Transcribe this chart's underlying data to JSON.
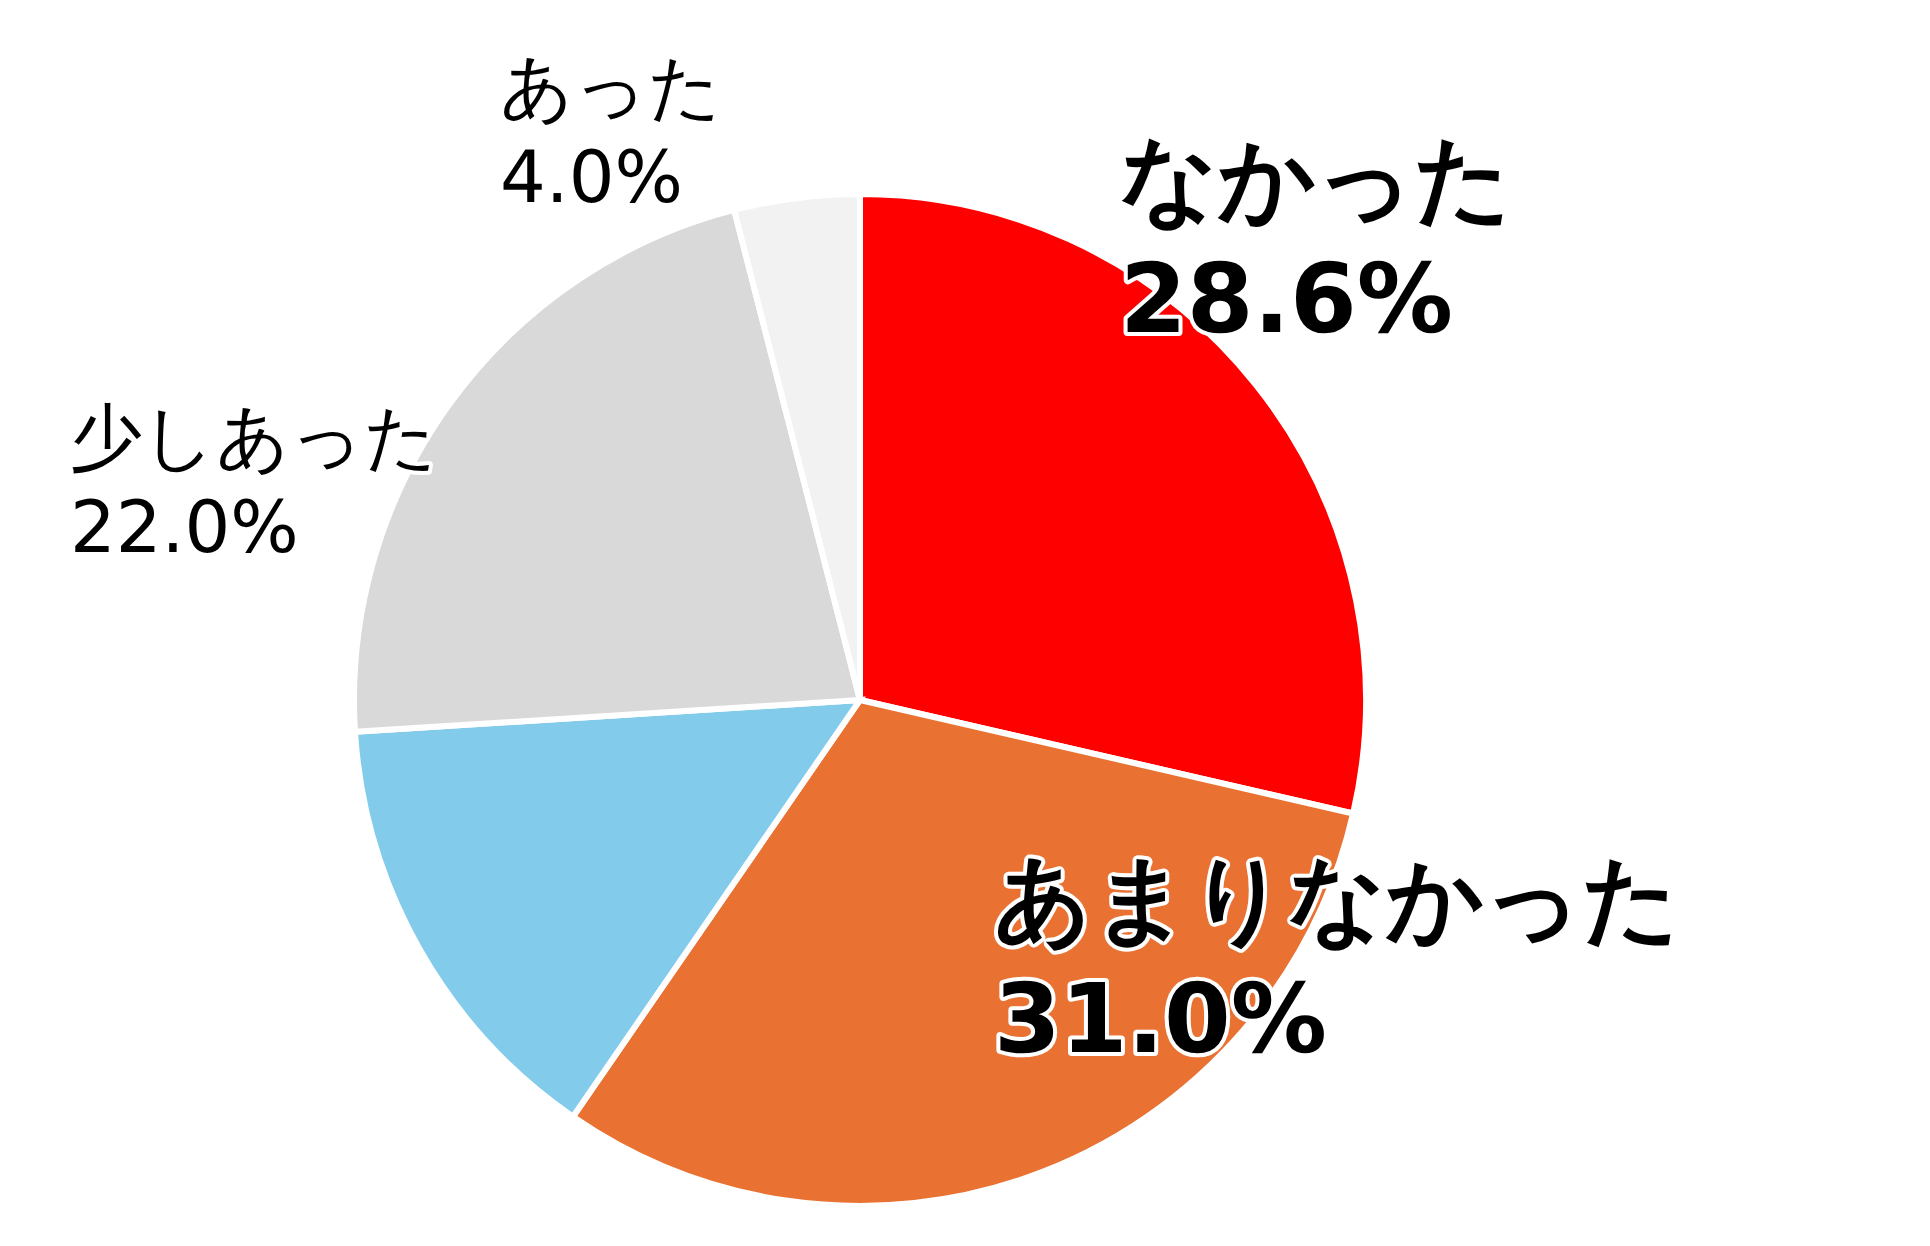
{
  "chart_data": {
    "type": "pie",
    "categories": [
      "なかった",
      "あまりなかった",
      null,
      "少しあった",
      "あった"
    ],
    "values": [
      28.6,
      31.0,
      14.4,
      22.0,
      4.0
    ],
    "value_labels": [
      "28.6%",
      "31.0%",
      null,
      "22.0%",
      "4.0%"
    ],
    "colors": [
      "#ff0000",
      "#e97132",
      "#83cbeb",
      "#d9d9d9",
      "#f2f2f2"
    ]
  }
}
